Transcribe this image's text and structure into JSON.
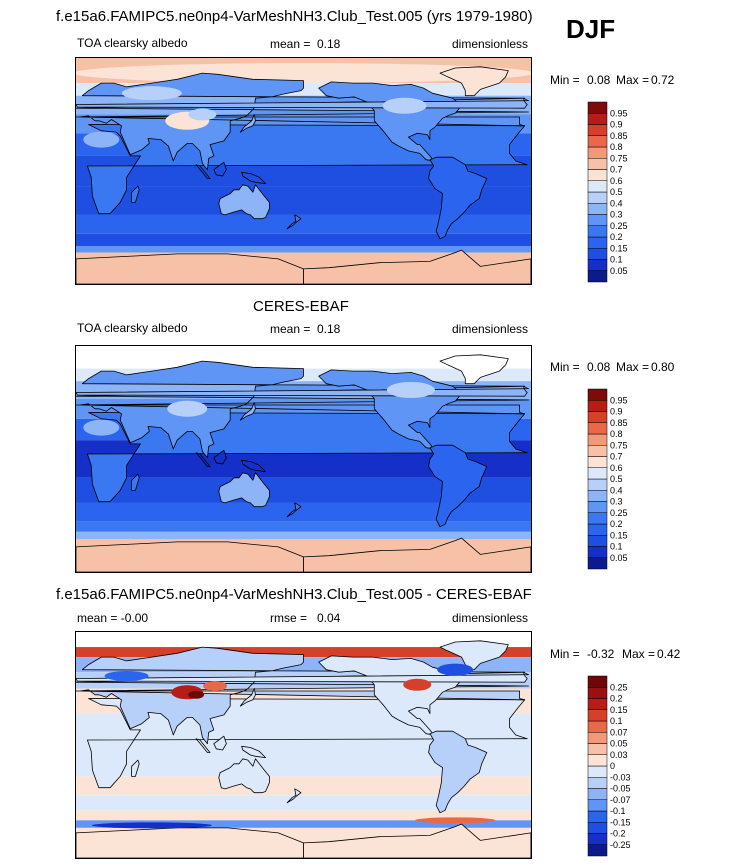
{
  "season": "DJF",
  "panels": [
    {
      "id": "model",
      "heading": "f.e15a6.FAMIPC5.ne0np4-VarMeshNH3.Club_Test.005 (yrs 1979-1980)",
      "left_label": "TOA clearsky albedo",
      "stat_label": "mean =",
      "stat_value": "0.18",
      "units": "dimensionless",
      "min_label": "Min =",
      "min_value": "0.08",
      "max_label": "Max =",
      "max_value": "0.72",
      "kind": "model"
    },
    {
      "id": "obs",
      "heading": "CERES-EBAF",
      "left_label": "TOA clearsky albedo",
      "stat_label": "mean =",
      "stat_value": "0.18",
      "units": "dimensionless",
      "min_label": "Min =",
      "min_value": "0.08",
      "max_label": "Max =",
      "max_value": "0.80",
      "kind": "obs"
    },
    {
      "id": "diff",
      "heading": "f.e15a6.FAMIPC5.ne0np4-VarMeshNH3.Club_Test.005 - CERES-EBAF",
      "left_label": "mean =  -0.00",
      "stat_label": "rmse =",
      "stat_value": "0.04",
      "units": "dimensionless",
      "min_label": "Min =",
      "min_value": "-0.32",
      "max_label": "Max =",
      "max_value": "0.42",
      "kind": "diff"
    }
  ],
  "chart_data": [
    {
      "type": "heatmap",
      "title": "f.e15a6.FAMIPC5.ne0np4-VarMeshNH3.Club_Test.005 (yrs 1979-1980)",
      "variable": "TOA clearsky albedo",
      "units": "dimensionless",
      "mean": 0.18,
      "min": 0.08,
      "max": 0.72,
      "colorbar_levels": [
        0.05,
        0.1,
        0.15,
        0.2,
        0.25,
        0.3,
        0.4,
        0.5,
        0.6,
        0.7,
        0.75,
        0.8,
        0.85,
        0.9,
        0.95
      ],
      "colorbar_colors": [
        "#0d1a8c",
        "#1530c8",
        "#1f4fe0",
        "#2a64ef",
        "#3a78f2",
        "#5f96f5",
        "#8db4f7",
        "#b7d0f9",
        "#dce9fb",
        "#fbe4d6",
        "#f7c1a8",
        "#f29a78",
        "#e8684a",
        "#d4402a",
        "#b41e16",
        "#7e0a0a"
      ]
    },
    {
      "type": "heatmap",
      "title": "CERES-EBAF",
      "variable": "TOA clearsky albedo",
      "units": "dimensionless",
      "mean": 0.18,
      "min": 0.08,
      "max": 0.8,
      "colorbar_levels": [
        0.05,
        0.1,
        0.15,
        0.2,
        0.25,
        0.3,
        0.4,
        0.5,
        0.6,
        0.7,
        0.75,
        0.8,
        0.85,
        0.9,
        0.95
      ],
      "colorbar_colors": [
        "#0d1a8c",
        "#1530c8",
        "#1f4fe0",
        "#2a64ef",
        "#3a78f2",
        "#5f96f5",
        "#8db4f7",
        "#b7d0f9",
        "#dce9fb",
        "#fbe4d6",
        "#f7c1a8",
        "#f29a78",
        "#e8684a",
        "#d4402a",
        "#b41e16",
        "#7e0a0a"
      ]
    },
    {
      "type": "heatmap",
      "title": "f.e15a6.FAMIPC5.ne0np4-VarMeshNH3.Club_Test.005 - CERES-EBAF",
      "units": "dimensionless",
      "mean": -0.0,
      "rmse": 0.04,
      "min": -0.32,
      "max": 0.42,
      "colorbar_levels": [
        -0.25,
        -0.2,
        -0.15,
        -0.1,
        -0.07,
        -0.05,
        -0.03,
        0,
        0.03,
        0.05,
        0.07,
        0.1,
        0.15,
        0.2,
        0.25
      ],
      "colorbar_colors": [
        "#0d1a8c",
        "#1530c8",
        "#1f4fe0",
        "#2a64ef",
        "#5f96f5",
        "#8db4f7",
        "#b7d0f9",
        "#dce9fb",
        "#fbe4d6",
        "#f7c1a8",
        "#f29a78",
        "#e8684a",
        "#d4402a",
        "#b41e16",
        "#9a1010",
        "#6e0808"
      ]
    }
  ]
}
